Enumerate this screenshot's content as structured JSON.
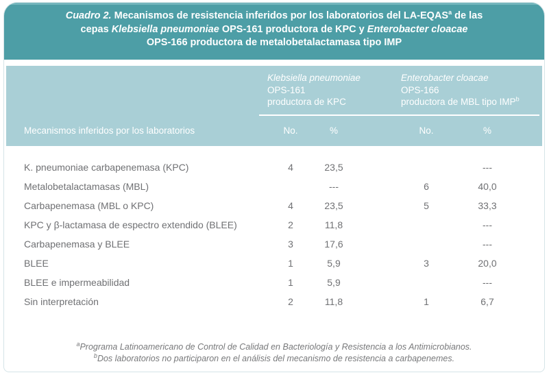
{
  "colors": {
    "band_dark_teal": "#4d9ea6",
    "band_light_teal": "#a9cfd6",
    "body_text_gray": "#6f7073",
    "title_text": "#ffffff"
  },
  "title": {
    "line1": {
      "lead_italic": "Cuadro 2.",
      "text": " Mecanismos de resistencia inferidos por los laboratorios del LA-EQAS",
      "sup": "a",
      "tail": " de las"
    },
    "line2": {
      "pre": "cepas ",
      "species1": "Klebsiella pneumoniae",
      "mid": " OPS-161 productora de KPC y ",
      "species2": "Enterobacter cloacae"
    },
    "line3": "OPS-166 productora de metalobetalactamasa tipo IMP"
  },
  "header": {
    "stub": "Mecanismos inferidos por los laboratorios",
    "groups": [
      {
        "species": "Klebsiella pneumoniae",
        "code": "OPS-161",
        "desc": "productora de KPC",
        "sup": ""
      },
      {
        "species": "Enterobacter cloacae",
        "code": "OPS-166",
        "desc": "productora de MBL tipo IMP",
        "sup": "b"
      }
    ],
    "sub": {
      "no": "No.",
      "pct": "%"
    }
  },
  "table": {
    "rows": [
      {
        "label": "K. pneumoniae carbapenemasa (KPC)",
        "kp_no": "4",
        "kp_pct": "23,5",
        "ec_no": "",
        "ec_pct": "---"
      },
      {
        "label": "Metalobetalactamasas (MBL)",
        "kp_no": "",
        "kp_pct": "---",
        "ec_no": "6",
        "ec_pct": "40,0"
      },
      {
        "label": "Carbapenemasa (MBL o KPC)",
        "kp_no": "4",
        "kp_pct": "23,5",
        "ec_no": "5",
        "ec_pct": "33,3"
      },
      {
        "label": "KPC y β-lactamasa de espectro extendido (BLEE)",
        "kp_no": "2",
        "kp_pct": "11,8",
        "ec_no": "",
        "ec_pct": "---"
      },
      {
        "label": "Carbapenemasa y BLEE",
        "kp_no": "3",
        "kp_pct": "17,6",
        "ec_no": "",
        "ec_pct": "---"
      },
      {
        "label": "BLEE",
        "kp_no": "1",
        "kp_pct": "5,9",
        "ec_no": "3",
        "ec_pct": "20,0"
      },
      {
        "label": "BLEE e impermeabilidad",
        "kp_no": "1",
        "kp_pct": "5,9",
        "ec_no": "",
        "ec_pct": "---"
      },
      {
        "label": "Sin interpretación",
        "kp_no": "2",
        "kp_pct": "11,8",
        "ec_no": "1",
        "ec_pct": "6,7"
      }
    ]
  },
  "footnotes": [
    {
      "sup": "a",
      "text": "Programa Latinoamericano de Control de Calidad en Bacteriología y Resistencia a los Antimicrobianos."
    },
    {
      "sup": "b",
      "text": "Dos laboratorios no participaron en el análisis del mecanismo de resistencia a carbapenemes."
    }
  ]
}
